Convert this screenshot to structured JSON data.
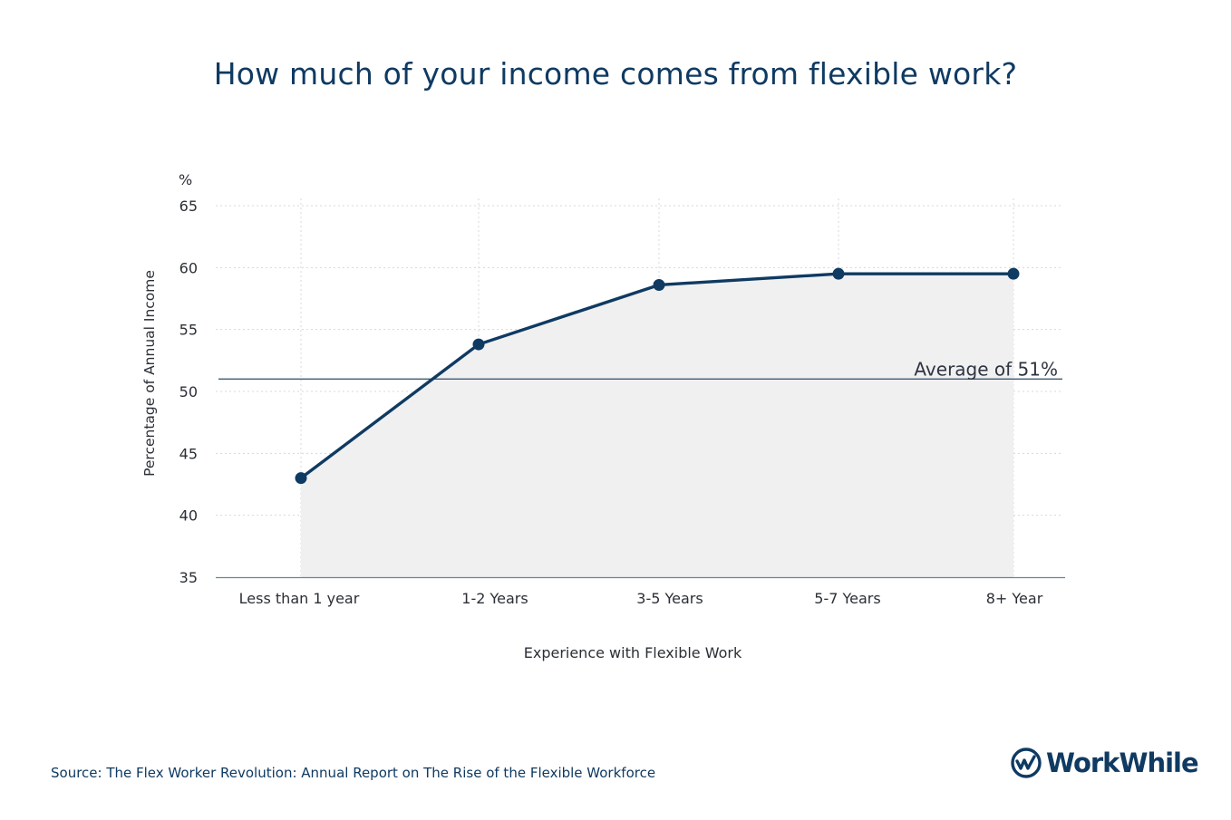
{
  "colors": {
    "title": "#0f3a62",
    "line": "#0f3a62",
    "area": "#f0f0f1",
    "grid": "#d5d8dc",
    "avg_line": "#3d5a73"
  },
  "chart_data": {
    "type": "line",
    "title": "How much of your income comes from flexible work?",
    "xlabel": "Experience with Flexible Work",
    "ylabel": "Percentage of Annual Income",
    "yunit": "%",
    "ylim": [
      35,
      65
    ],
    "yticks": [
      35,
      40,
      45,
      50,
      55,
      60,
      65
    ],
    "categories": [
      "Less than 1 year",
      "1-2 Years",
      "3-5 Years",
      "5-7 Years",
      "8+ Year"
    ],
    "series": [
      {
        "values": [
          43,
          53.8,
          58.6,
          59.5,
          59.5
        ]
      }
    ],
    "reference_line": {
      "value": 51,
      "label": "Average of 51%"
    },
    "grid": true,
    "area_fill": true
  },
  "footer": {
    "source": "Source: The Flex Worker Revolution: Annual Report on The Rise of the Flexible Workforce",
    "logo_text": "WorkWhile",
    "logo_icon": "workwhile-logo-icon"
  }
}
